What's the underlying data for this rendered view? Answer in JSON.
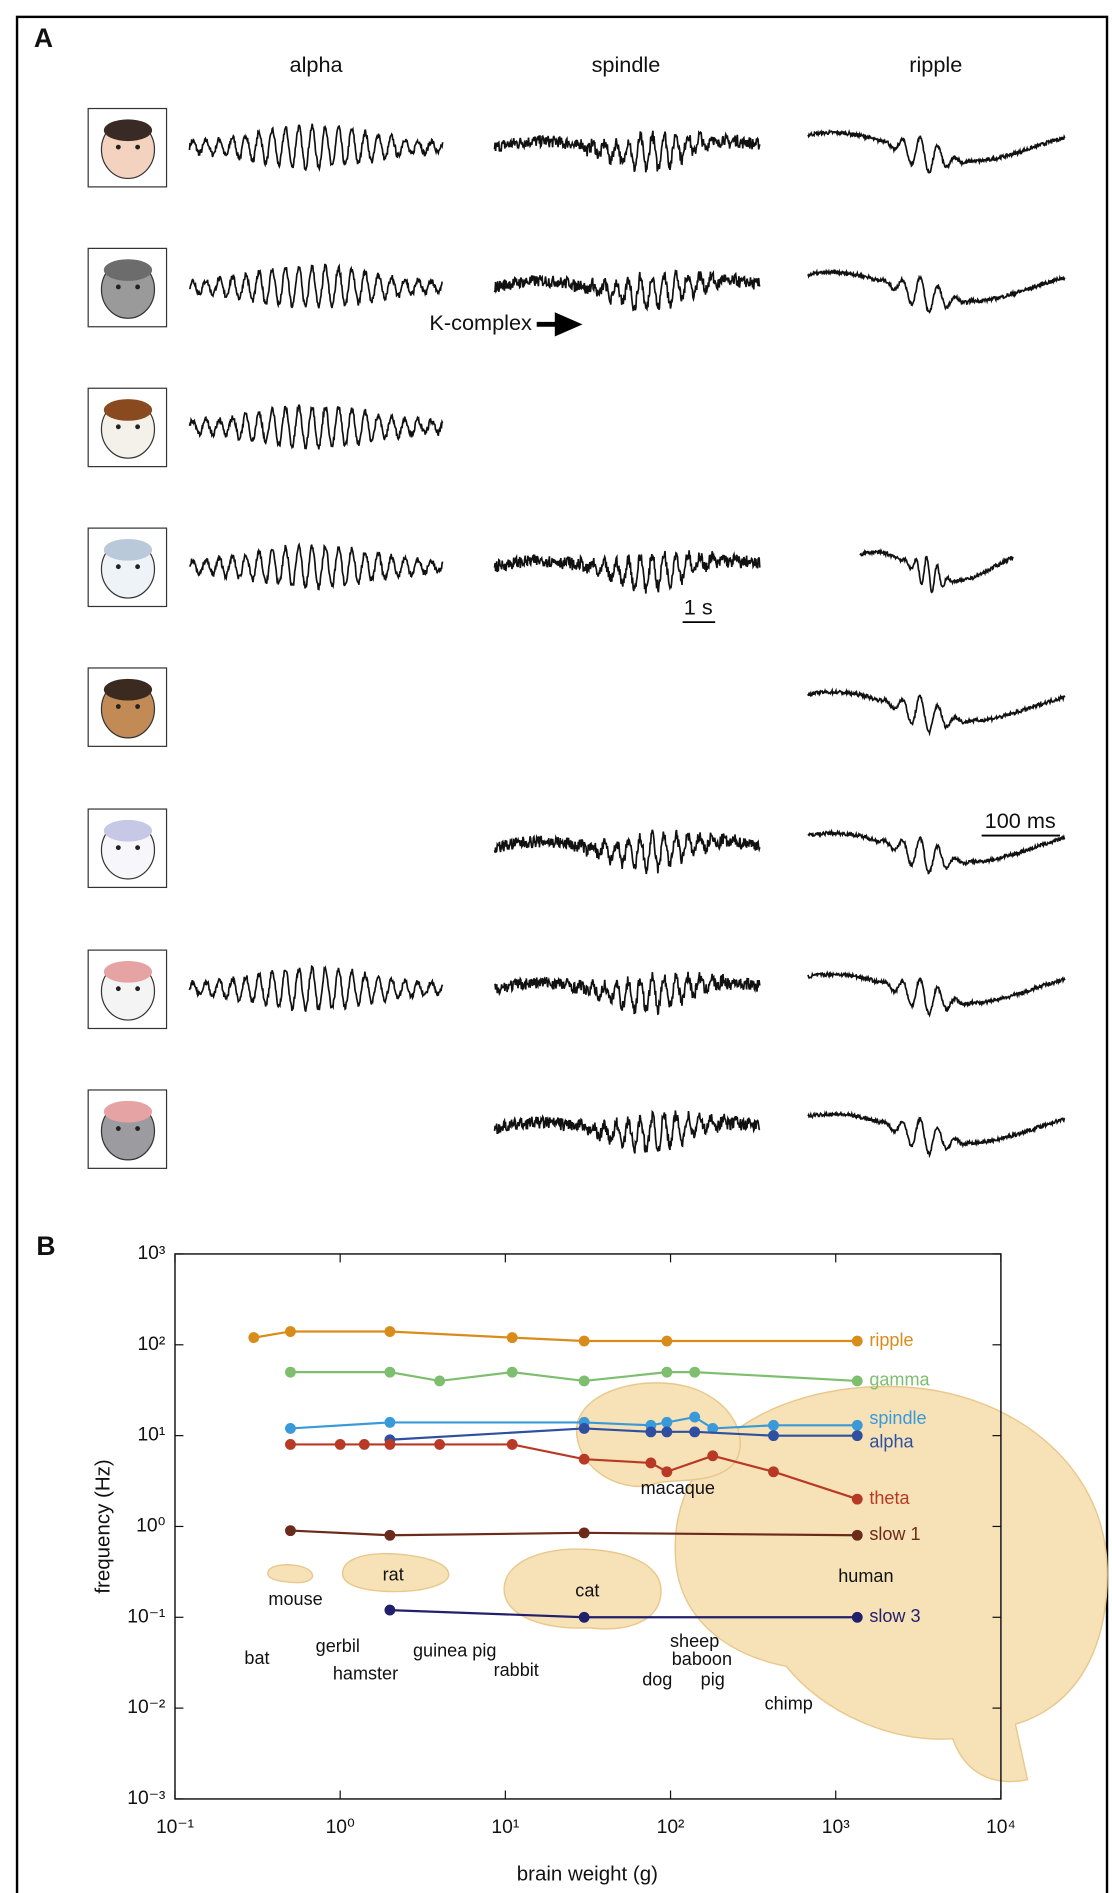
{
  "panel_a": {
    "label": "A",
    "columns": [
      "alpha",
      "spindle",
      "ripple"
    ],
    "k_complex": "K-complex",
    "scale_spindle": "1 s",
    "scale_ripple": "100 ms"
  },
  "chart_data": {
    "type": "line",
    "panel_label": "B",
    "x_label": "brain weight (g)",
    "y_label": "frequency (Hz)",
    "log_x": true,
    "log_y": true,
    "xlim": [
      0.1,
      10000
    ],
    "ylim": [
      0.001,
      1000
    ],
    "xticks": [
      {
        "value": 0.1,
        "label": "10⁻¹"
      },
      {
        "value": 1,
        "label": "10⁰"
      },
      {
        "value": 10,
        "label": "10¹"
      },
      {
        "value": 100,
        "label": "10²"
      },
      {
        "value": 1000,
        "label": "10³"
      },
      {
        "value": 10000,
        "label": "10⁴"
      }
    ],
    "yticks": [
      {
        "value": 0.001,
        "label": "10⁻³"
      },
      {
        "value": 0.01,
        "label": "10⁻²"
      },
      {
        "value": 0.1,
        "label": "10⁻¹"
      },
      {
        "value": 1,
        "label": "10⁰"
      },
      {
        "value": 10,
        "label": "10¹"
      },
      {
        "value": 100,
        "label": "10²"
      },
      {
        "value": 1000,
        "label": "10³"
      }
    ],
    "series": [
      {
        "name": "ripple",
        "color": "#d98c1a",
        "x": [
          0.3,
          0.5,
          2,
          11,
          30,
          95,
          1350
        ],
        "values": [
          120,
          140,
          140,
          120,
          110,
          110,
          110
        ]
      },
      {
        "name": "gamma",
        "color": "#7dbf6e",
        "x": [
          0.5,
          2,
          4,
          11,
          30,
          95,
          140,
          1350
        ],
        "values": [
          50,
          50,
          40,
          50,
          40,
          50,
          50,
          40
        ]
      },
      {
        "name": "spindle",
        "color": "#3a9ad9",
        "x": [
          0.5,
          2,
          30,
          76,
          95,
          140,
          180,
          420,
          1350
        ],
        "values": [
          12,
          14,
          14,
          13,
          14,
          16,
          12,
          13,
          13
        ]
      },
      {
        "name": "alpha",
        "color": "#2f4fa0",
        "x": [
          2,
          30,
          76,
          95,
          140,
          420,
          1350
        ],
        "values": [
          9,
          12,
          11,
          11,
          11,
          10,
          10
        ]
      },
      {
        "name": "theta",
        "color": "#b83a26",
        "x": [
          0.5,
          1,
          1.4,
          2,
          4,
          11,
          30,
          76,
          95,
          180,
          420,
          1350
        ],
        "values": [
          8,
          8,
          8,
          8,
          8,
          8,
          5.5,
          5,
          4,
          6,
          4,
          2
        ]
      },
      {
        "name": "slow 1",
        "color": "#6b2a1a",
        "x": [
          0.5,
          2,
          30,
          1350
        ],
        "values": [
          0.9,
          0.8,
          0.85,
          0.8
        ]
      },
      {
        "name": "slow 3",
        "color": "#23206b",
        "x": [
          2,
          30,
          1350
        ],
        "values": [
          0.12,
          0.1,
          0.1
        ]
      }
    ],
    "annotations": [
      "mouse",
      "rat",
      "cat",
      "macaque",
      "human",
      "bat",
      "gerbil",
      "hamster",
      "guinea pig",
      "rabbit",
      "sheep",
      "baboon",
      "dog",
      "pig",
      "chimp"
    ]
  }
}
